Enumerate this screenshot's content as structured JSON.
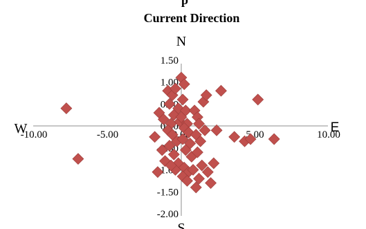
{
  "chart_data": {
    "type": "scatter",
    "title": "Current Direction",
    "header_fragment": "p",
    "xlim": [
      -10,
      10
    ],
    "ylim": [
      -2,
      1.5
    ],
    "x_ticks": [
      "-10.00",
      "-5.00",
      "0.00",
      "5.00",
      "10.00"
    ],
    "y_ticks": [
      "1.50",
      "1.00",
      "0.50",
      "0.00",
      "-0.50",
      "-1.00",
      "-1.50",
      "-2.00"
    ],
    "compass": {
      "north": "N",
      "south": "S",
      "east": "E",
      "west": "W"
    },
    "marker_color": "#c0504d",
    "marker_stroke": "#9b3b38",
    "legend": "none",
    "grid": false,
    "series": [
      {
        "points": [
          [
            -7.8,
            0.4
          ],
          [
            -7.0,
            -0.75
          ],
          [
            -1.5,
            0.3
          ],
          [
            -1.2,
            0.15
          ],
          [
            -1.8,
            -0.25
          ],
          [
            -1.3,
            -0.55
          ],
          [
            -1.1,
            -0.8
          ],
          [
            -1.6,
            -1.05
          ],
          [
            -0.9,
            0.8
          ],
          [
            -0.6,
            0.7
          ],
          [
            -0.4,
            0.85
          ],
          [
            -0.8,
            0.5
          ],
          [
            -0.5,
            0.25
          ],
          [
            -0.7,
            0.05
          ],
          [
            -0.9,
            -0.1
          ],
          [
            -0.6,
            -0.2
          ],
          [
            -0.3,
            -0.35
          ],
          [
            -0.8,
            -0.45
          ],
          [
            -0.5,
            -0.65
          ],
          [
            -0.2,
            -0.85
          ],
          [
            -0.4,
            -1.0
          ],
          [
            -0.7,
            -0.9
          ],
          [
            -0.2,
            0.4
          ],
          [
            -0.1,
            0.1
          ],
          [
            0.0,
            1.1
          ],
          [
            0.2,
            0.95
          ],
          [
            0.1,
            0.6
          ],
          [
            0.3,
            0.35
          ],
          [
            0.0,
            0.2
          ],
          [
            0.4,
            0.05
          ],
          [
            0.2,
            -0.05
          ],
          [
            0.5,
            -0.15
          ],
          [
            0.1,
            -0.3
          ],
          [
            0.6,
            -0.4
          ],
          [
            0.3,
            -0.55
          ],
          [
            0.7,
            -0.7
          ],
          [
            0.2,
            -0.95
          ],
          [
            0.5,
            -1.05
          ],
          [
            0.1,
            -1.15
          ],
          [
            0.8,
            -1.0
          ],
          [
            0.4,
            -1.25
          ],
          [
            0.9,
            0.35
          ],
          [
            1.1,
            0.2
          ],
          [
            1.2,
            0.05
          ],
          [
            1.0,
            -0.2
          ],
          [
            1.3,
            -0.35
          ],
          [
            1.1,
            -0.6
          ],
          [
            1.4,
            -0.9
          ],
          [
            1.2,
            -1.2
          ],
          [
            1.0,
            -1.4
          ],
          [
            1.5,
            0.55
          ],
          [
            1.7,
            0.7
          ],
          [
            1.6,
            -0.1
          ],
          [
            1.8,
            -1.05
          ],
          [
            2.0,
            -1.3
          ],
          [
            2.2,
            -0.85
          ],
          [
            2.4,
            -0.1
          ],
          [
            2.7,
            0.8
          ],
          [
            3.6,
            -0.25
          ],
          [
            4.3,
            -0.35
          ],
          [
            4.7,
            -0.3
          ],
          [
            5.2,
            0.6
          ],
          [
            6.3,
            -0.3
          ]
        ]
      }
    ]
  }
}
